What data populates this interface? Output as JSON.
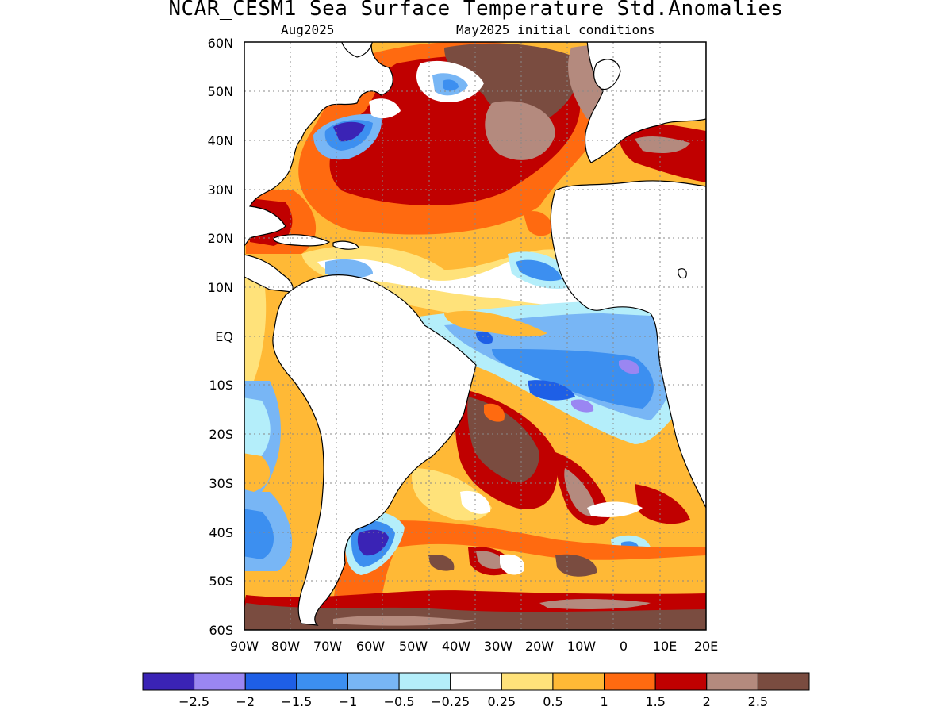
{
  "title": "NCAR_CESM1 Sea Surface Temperature Std.Anomalies",
  "subtitle_left": "Aug2025",
  "subtitle_right": "May2025 initial conditions",
  "map": {
    "lat_labels": [
      "60N",
      "50N",
      "40N",
      "30N",
      "20N",
      "10N",
      "EQ",
      "10S",
      "20S",
      "30S",
      "40S",
      "50S",
      "60S"
    ],
    "lon_labels": [
      "90W",
      "80W",
      "70W",
      "60W",
      "50W",
      "40W",
      "30W",
      "20W",
      "10W",
      "0",
      "10E",
      "20E"
    ],
    "region": "Atlantic Ocean"
  },
  "colorbar": {
    "colors": [
      "#3a23b5",
      "#9a86f2",
      "#1e5fe6",
      "#3c8ff0",
      "#78b6f5",
      "#b4eefa",
      "#ffffff",
      "#ffe27a",
      "#ffb936",
      "#ff6a10",
      "#c00000",
      "#b48a7e",
      "#7a4c40"
    ],
    "tick_labels": [
      "−2.5",
      "−2",
      "−1.5",
      "−1",
      "−0.5",
      "−0.25",
      "0.25",
      "0.5",
      "1",
      "1.5",
      "2",
      "2.5"
    ]
  }
}
